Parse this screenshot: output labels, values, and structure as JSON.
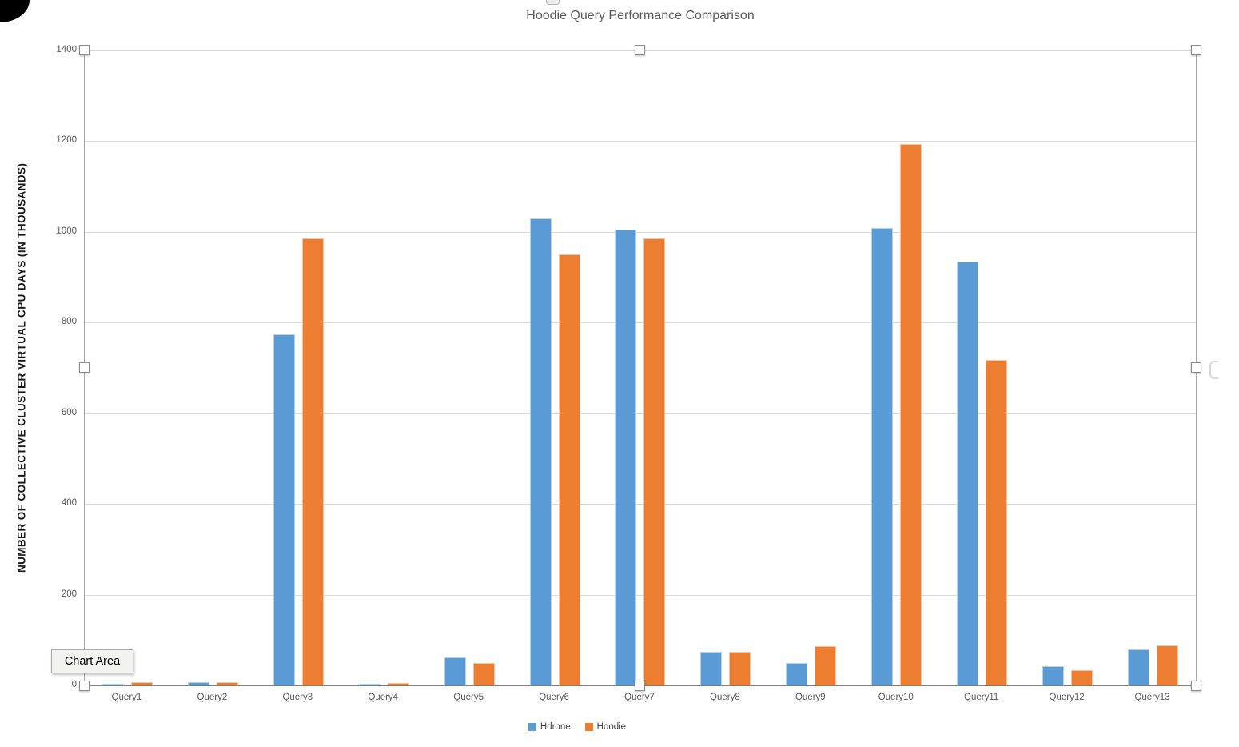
{
  "tooltip": {
    "label": "Chart Area"
  },
  "chart_data": {
    "type": "bar",
    "title": "Hoodie Query Performance Comparison",
    "ylabel": "NUMBER OF COLLECTIVE CLUSTER VIRTUAL CPU DAYS (IN THOUSANDS)",
    "xlabel": "",
    "categories": [
      "Query1",
      "Query2",
      "Query3",
      "Query4",
      "Query5",
      "Query6",
      "Query7",
      "Query8",
      "Query9",
      "Query10",
      "Query11",
      "Query12",
      "Query13"
    ],
    "series": [
      {
        "name": "Hdrone",
        "color": "#5B9BD5",
        "values": [
          4,
          8,
          775,
          4,
          62,
          1030,
          1005,
          74,
          50,
          1008,
          935,
          42,
          80
        ]
      },
      {
        "name": "Hoodie",
        "color": "#ED7D31",
        "values": [
          8,
          8,
          985,
          5,
          50,
          950,
          985,
          74,
          86,
          1193,
          718,
          34,
          89
        ]
      }
    ],
    "ylim": [
      0,
      1400
    ],
    "yticks": [
      0,
      200,
      400,
      600,
      800,
      1000,
      1200,
      1400
    ],
    "grid": true,
    "legend_position": "bottom",
    "units": "thousands",
    "selected": true
  }
}
